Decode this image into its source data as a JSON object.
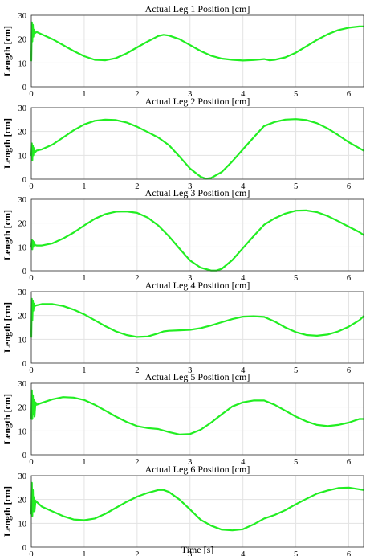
{
  "chart_data": {
    "type": "line",
    "xlabel": "Time [s]",
    "ylabel": "Length [cm]",
    "xlim": [
      0,
      6.28
    ],
    "ylim": [
      0,
      30
    ],
    "xticks": [
      0,
      1,
      2,
      3,
      4,
      5,
      6
    ],
    "yticks": [
      0,
      10,
      20,
      30
    ],
    "grid": true,
    "line_color": "#22ee22",
    "subplots": [
      {
        "title": "Actual Leg 1 Position [cm]",
        "x": [
          0,
          0.01,
          0.02,
          0.03,
          0.04,
          0.05,
          0.07,
          0.1,
          0.2,
          0.4,
          0.6,
          0.8,
          1.0,
          1.2,
          1.4,
          1.6,
          1.8,
          2.0,
          2.2,
          2.4,
          2.5,
          2.6,
          2.8,
          3.0,
          3.2,
          3.4,
          3.6,
          3.8,
          4.0,
          4.2,
          4.4,
          4.5,
          4.6,
          4.8,
          5.0,
          5.2,
          5.4,
          5.6,
          5.8,
          6.0,
          6.2,
          6.28
        ],
        "y": [
          11,
          27,
          19,
          26,
          21,
          24,
          22.5,
          23,
          22,
          20,
          17.5,
          15,
          12.8,
          11.3,
          11.1,
          12,
          14,
          16.5,
          19,
          21.3,
          21.8,
          21.5,
          20,
          17.5,
          15,
          13,
          11.8,
          11.3,
          11,
          11.2,
          11.6,
          11.1,
          11.3,
          12.3,
          14.3,
          17,
          19.7,
          22,
          23.8,
          24.8,
          25.3,
          25.3
        ]
      },
      {
        "title": "Actual Leg 2 Position [cm]",
        "x": [
          0,
          0.01,
          0.02,
          0.03,
          0.04,
          0.05,
          0.07,
          0.1,
          0.2,
          0.4,
          0.6,
          0.8,
          1.0,
          1.2,
          1.4,
          1.6,
          1.8,
          2.0,
          2.2,
          2.4,
          2.6,
          2.8,
          3.0,
          3.2,
          3.3,
          3.4,
          3.6,
          3.8,
          4.0,
          4.2,
          4.4,
          4.6,
          4.8,
          5.0,
          5.2,
          5.4,
          5.6,
          5.8,
          6.0,
          6.2,
          6.28
        ],
        "y": [
          10,
          15,
          8,
          14,
          10,
          13,
          11.2,
          12,
          12.5,
          14.5,
          17.5,
          20.5,
          23,
          24.5,
          25,
          24.8,
          23.8,
          22,
          19.8,
          17.5,
          14.3,
          9.5,
          4.5,
          1,
          0.2,
          0.5,
          3,
          7.5,
          12.5,
          17.5,
          22.3,
          24,
          25,
          25.2,
          24.8,
          23.5,
          21.3,
          18.5,
          15.5,
          13,
          12
        ]
      },
      {
        "title": "Actual Leg 3 Position [cm]",
        "x": [
          0,
          0.01,
          0.02,
          0.03,
          0.04,
          0.05,
          0.07,
          0.1,
          0.2,
          0.4,
          0.6,
          0.8,
          1.0,
          1.2,
          1.4,
          1.6,
          1.8,
          2.0,
          2.2,
          2.4,
          2.6,
          2.8,
          3.0,
          3.2,
          3.4,
          3.5,
          3.6,
          3.8,
          4.0,
          4.2,
          4.4,
          4.6,
          4.8,
          5.0,
          5.2,
          5.4,
          5.6,
          5.8,
          6.0,
          6.2,
          6.28
        ],
        "y": [
          10,
          13,
          9,
          12.5,
          10,
          12,
          10.8,
          10.6,
          10.6,
          11.5,
          13.5,
          16,
          19,
          21.8,
          23.8,
          24.8,
          24.9,
          24.3,
          22.3,
          19,
          14.5,
          9.3,
          4.3,
          1.3,
          0.1,
          0.1,
          0.8,
          4.5,
          9.5,
          14.5,
          19.3,
          22,
          24,
          25.2,
          25.3,
          24.6,
          23,
          20.8,
          18.5,
          16.2,
          15
        ]
      },
      {
        "title": "Actual Leg 4 Position [cm]",
        "x": [
          0,
          0.01,
          0.02,
          0.03,
          0.04,
          0.05,
          0.07,
          0.1,
          0.2,
          0.4,
          0.6,
          0.8,
          1.0,
          1.2,
          1.4,
          1.6,
          1.8,
          2.0,
          2.2,
          2.4,
          2.5,
          2.6,
          2.8,
          3.0,
          3.2,
          3.4,
          3.6,
          3.8,
          4.0,
          4.2,
          4.4,
          4.6,
          4.8,
          5.0,
          5.2,
          5.4,
          5.6,
          5.8,
          6.0,
          6.2,
          6.28
        ],
        "y": [
          11,
          27,
          18,
          26,
          22,
          25,
          24,
          24.3,
          24.8,
          24.8,
          24,
          22.5,
          20.5,
          18,
          15.5,
          13.3,
          11.8,
          11,
          11.2,
          12.5,
          13.3,
          13.6,
          13.8,
          14,
          14.7,
          15.8,
          17.2,
          18.5,
          19.5,
          19.7,
          19.4,
          17.5,
          15,
          13,
          11.8,
          11.5,
          12,
          13.3,
          15.3,
          18,
          19.7
        ]
      },
      {
        "title": "Actual Leg 5 Position [cm]",
        "x": [
          0,
          0.01,
          0.02,
          0.03,
          0.04,
          0.05,
          0.06,
          0.08,
          0.1,
          0.2,
          0.4,
          0.6,
          0.8,
          1.0,
          1.2,
          1.4,
          1.6,
          1.8,
          2.0,
          2.2,
          2.4,
          2.6,
          2.8,
          3.0,
          3.2,
          3.4,
          3.6,
          3.8,
          4.0,
          4.2,
          4.4,
          4.6,
          4.8,
          5.0,
          5.2,
          5.4,
          5.6,
          5.8,
          6.0,
          6.2,
          6.28
        ],
        "y": [
          15,
          27,
          15,
          25,
          17,
          23,
          16,
          22,
          21,
          21.8,
          23.3,
          24.2,
          24,
          23,
          21,
          18.5,
          16,
          13.8,
          12,
          11.2,
          10.8,
          9.5,
          8.5,
          8.7,
          10.5,
          13.5,
          17,
          20.3,
          22,
          22.8,
          22.8,
          21,
          18.5,
          16,
          14,
          12.5,
          12,
          12.5,
          13.5,
          15,
          15
        ]
      },
      {
        "title": "Actual Leg 6 Position [cm]",
        "x": [
          0,
          0.01,
          0.02,
          0.03,
          0.04,
          0.05,
          0.06,
          0.08,
          0.1,
          0.2,
          0.4,
          0.6,
          0.8,
          1.0,
          1.2,
          1.4,
          1.6,
          1.8,
          2.0,
          2.2,
          2.4,
          2.5,
          2.6,
          2.8,
          3.0,
          3.2,
          3.4,
          3.6,
          3.8,
          4.0,
          4.2,
          4.4,
          4.6,
          4.8,
          5.0,
          5.2,
          5.4,
          5.6,
          5.8,
          6.0,
          6.2,
          6.28
        ],
        "y": [
          14,
          27,
          13,
          24,
          15,
          21,
          15,
          19.5,
          19,
          17,
          15,
          13,
          11.6,
          11.3,
          12,
          14,
          16.5,
          19,
          21.2,
          22.8,
          24,
          24,
          23.2,
          20,
          15.8,
          11.5,
          9,
          7.3,
          7,
          7.5,
          9.5,
          12,
          13.5,
          15.5,
          18,
          20.3,
          22.5,
          23.8,
          24.8,
          25,
          24.3,
          24
        ]
      }
    ]
  }
}
